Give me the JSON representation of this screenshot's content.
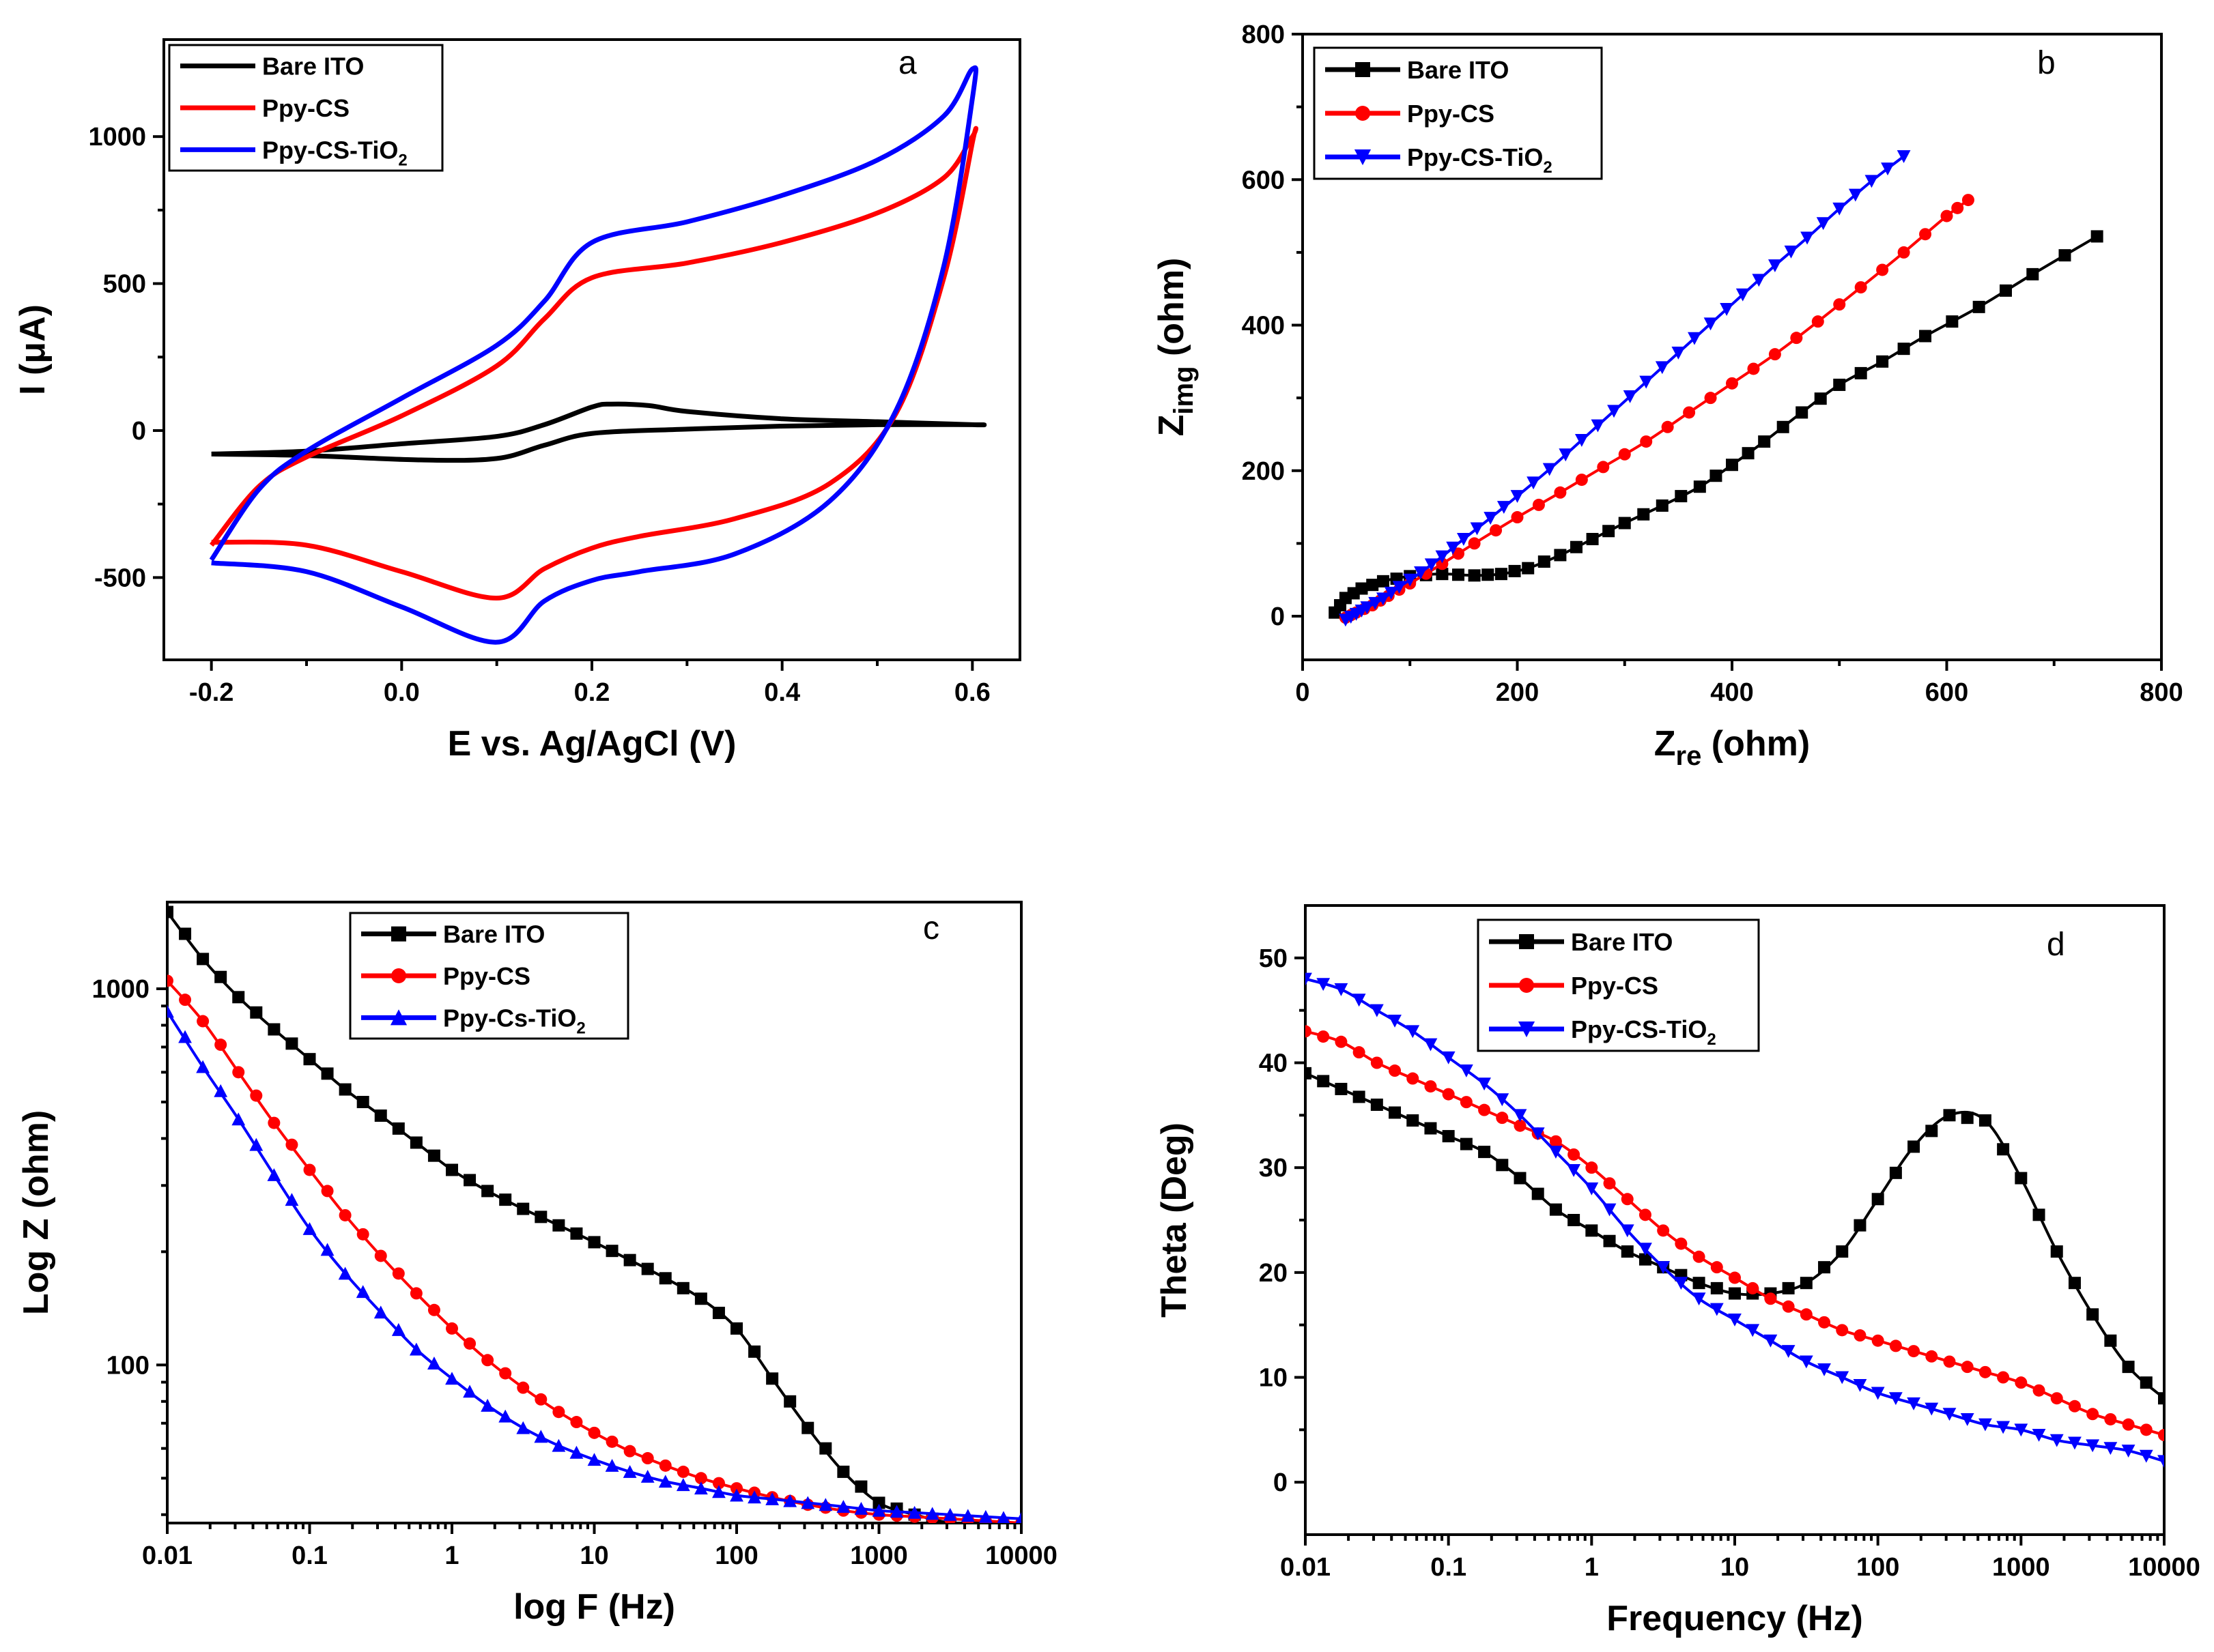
{
  "colors": {
    "bare": "#000000",
    "ppy": "#ff0000",
    "tio2": "#0000ff"
  },
  "chart_data": [
    {
      "panel": "a",
      "type": "line",
      "xlabel": "E vs. Ag/AgCl (V)",
      "ylabel": "I (μA)",
      "xlim": [
        -0.25,
        0.65
      ],
      "ylim": [
        -780,
        1330
      ],
      "xticks": [
        -0.2,
        0.0,
        0.2,
        0.4,
        0.6
      ],
      "xtick_labels": [
        "-0.2",
        "0.0",
        "0.2",
        "0.4",
        "0.6"
      ],
      "yticks": [
        -500,
        0,
        500,
        1000
      ],
      "ytick_labels": [
        "-500",
        "0",
        "500",
        "1000"
      ],
      "legend": {
        "position": "top-left",
        "entries": [
          {
            "label": "Bare ITO",
            "marker": "none"
          },
          {
            "label": "Ppy-CS",
            "marker": "none"
          },
          {
            "label": "Ppy-CS-TiO",
            "sub": "2",
            "marker": "none"
          }
        ]
      },
      "series": [
        {
          "name": "Bare ITO",
          "color": "bare",
          "x": [
            -0.2,
            -0.1,
            0.0,
            0.1,
            0.15,
            0.2,
            0.22,
            0.26,
            0.3,
            0.4,
            0.5,
            0.6,
            0.6,
            0.5,
            0.4,
            0.3,
            0.2,
            0.15,
            0.1,
            0.02,
            -0.1,
            -0.2
          ],
          "y": [
            -80,
            -70,
            -45,
            -20,
            20,
            80,
            90,
            85,
            65,
            40,
            30,
            20,
            20,
            20,
            15,
            5,
            -10,
            -50,
            -95,
            -100,
            -85,
            -80
          ]
        },
        {
          "name": "Ppy-CS",
          "color": "ppy",
          "x": [
            -0.2,
            -0.15,
            -0.1,
            0.0,
            0.1,
            0.15,
            0.2,
            0.3,
            0.4,
            0.5,
            0.57,
            0.6,
            0.6,
            0.57,
            0.52,
            0.45,
            0.35,
            0.25,
            0.2,
            0.15,
            0.1,
            0.0,
            -0.1,
            -0.2
          ],
          "y": [
            -390,
            -190,
            -90,
            50,
            220,
            380,
            520,
            570,
            640,
            740,
            860,
            1000,
            980,
            520,
            60,
            -180,
            -300,
            -360,
            -400,
            -470,
            -570,
            -480,
            -390,
            -380
          ]
        },
        {
          "name": "Ppy-CS-TiO2",
          "color": "tio2",
          "x": [
            -0.2,
            -0.15,
            -0.1,
            0.0,
            0.1,
            0.15,
            0.2,
            0.3,
            0.4,
            0.5,
            0.57,
            0.6,
            0.6,
            0.57,
            0.52,
            0.45,
            0.35,
            0.25,
            0.2,
            0.15,
            0.1,
            0.0,
            -0.1,
            -0.2
          ],
          "y": [
            -440,
            -200,
            -70,
            110,
            290,
            440,
            640,
            710,
            800,
            920,
            1070,
            1230,
            1130,
            560,
            70,
            -240,
            -420,
            -480,
            -510,
            -580,
            -720,
            -600,
            -480,
            -450
          ]
        }
      ]
    },
    {
      "panel": "b",
      "type": "scatter",
      "xlabel": "Z",
      "xlabel_sub": "re",
      "xlabel_suffix": " (ohm)",
      "ylabel": "Z",
      "ylabel_sub": "img",
      "ylabel_suffix": " (ohm)",
      "xlim": [
        0,
        800
      ],
      "ylim": [
        -60,
        800
      ],
      "xticks": [
        0,
        200,
        400,
        600,
        800
      ],
      "xtick_labels": [
        "0",
        "200",
        "400",
        "600",
        "800"
      ],
      "yticks": [
        0,
        200,
        400,
        600,
        800
      ],
      "ytick_labels": [
        "0",
        "200",
        "400",
        "600",
        "800"
      ],
      "legend": {
        "position": "top-left",
        "entries": [
          {
            "label": "Bare ITO",
            "marker": "square"
          },
          {
            "label": "Ppy-CS",
            "marker": "circle"
          },
          {
            "label": "Ppy-CS-TiO",
            "sub": "2",
            "marker": "triangle-down"
          }
        ]
      },
      "series": [
        {
          "name": "Bare ITO",
          "color": "bare",
          "marker": "square",
          "x": [
            30,
            40,
            55,
            75,
            100,
            130,
            160,
            185,
            210,
            240,
            270,
            300,
            335,
            370,
            400,
            430,
            465,
            500,
            540,
            580,
            630,
            680,
            740
          ],
          "y": [
            5,
            25,
            38,
            48,
            55,
            58,
            56,
            58,
            66,
            84,
            106,
            128,
            152,
            178,
            208,
            240,
            280,
            318,
            350,
            385,
            425,
            470,
            522
          ]
        },
        {
          "name": "Ppy-CS",
          "color": "ppy",
          "marker": "circle",
          "x": [
            40,
            50,
            65,
            80,
            100,
            130,
            160,
            200,
            240,
            280,
            320,
            360,
            400,
            440,
            480,
            520,
            560,
            600,
            620
          ],
          "y": [
            -2,
            5,
            15,
            28,
            45,
            72,
            100,
            136,
            170,
            205,
            240,
            280,
            320,
            360,
            405,
            452,
            500,
            550,
            572
          ]
        },
        {
          "name": "Ppy-CS-TiO2",
          "color": "tio2",
          "marker": "triangle-down",
          "x": [
            40,
            50,
            60,
            75,
            90,
            110,
            130,
            150,
            175,
            200,
            230,
            260,
            290,
            320,
            350,
            380,
            410,
            440,
            470,
            500,
            530,
            560
          ],
          "y": [
            -5,
            3,
            12,
            24,
            40,
            60,
            82,
            106,
            135,
            165,
            202,
            242,
            282,
            322,
            362,
            402,
            442,
            482,
            520,
            560,
            598,
            632
          ]
        }
      ]
    },
    {
      "panel": "c",
      "type": "scatter",
      "xscale": "log",
      "yscale": "log",
      "xlabel": "log F (Hz)",
      "ylabel": "Log Z (ohm)",
      "xlim": [
        0.01,
        10000
      ],
      "ylim": [
        38,
        1700
      ],
      "xticks": [
        0.01,
        0.1,
        1,
        10,
        100,
        1000,
        10000
      ],
      "xtick_labels": [
        "0.01",
        "0.1",
        "1",
        "10",
        "100",
        "1000",
        "10000"
      ],
      "yticks": [
        100,
        1000
      ],
      "ytick_labels": [
        "100",
        "1000"
      ],
      "legend": {
        "position": "top-center",
        "entries": [
          {
            "label": "Bare ITO",
            "marker": "square"
          },
          {
            "label": "Ppy-CS",
            "marker": "circle"
          },
          {
            "label": "Ppy-Cs-TiO",
            "sub": "2",
            "marker": "triangle-up"
          }
        ]
      },
      "series": [
        {
          "name": "Bare ITO",
          "color": "bare",
          "marker": "square",
          "logx": [
            -2.0,
            -1.75,
            -1.5,
            -1.25,
            -1.0,
            -0.75,
            -0.5,
            -0.25,
            0.0,
            0.25,
            0.5,
            0.75,
            1.0,
            1.25,
            1.5,
            1.75,
            2.0,
            2.25,
            2.5,
            2.75,
            3.0,
            3.25,
            3.5,
            3.75,
            4.0
          ],
          "y": [
            1600,
            1200,
            950,
            780,
            650,
            540,
            460,
            390,
            330,
            290,
            260,
            235,
            212,
            190,
            170,
            150,
            125,
            92,
            68,
            52,
            43,
            40,
            38,
            37,
            35
          ]
        },
        {
          "name": "Ppy-CS",
          "color": "ppy",
          "marker": "circle",
          "logx": [
            -2.0,
            -1.75,
            -1.5,
            -1.25,
            -1.0,
            -0.75,
            -0.5,
            -0.25,
            0.0,
            0.25,
            0.5,
            0.75,
            1.0,
            1.25,
            1.5,
            1.75,
            2.0,
            2.25,
            2.5,
            2.75,
            3.0,
            3.25,
            3.5,
            3.75,
            4.0
          ],
          "y": [
            1050,
            820,
            600,
            440,
            330,
            250,
            195,
            155,
            125,
            103,
            87,
            75,
            66,
            59,
            54,
            50,
            47,
            44.5,
            42.5,
            41,
            40,
            39.5,
            39,
            38.5,
            38
          ]
        },
        {
          "name": "Ppy-Cs-TiO2",
          "color": "tio2",
          "marker": "triangle-up",
          "logx": [
            -2.0,
            -1.75,
            -1.5,
            -1.25,
            -1.0,
            -0.75,
            -0.5,
            -0.25,
            0.0,
            0.25,
            0.5,
            0.75,
            1.0,
            1.25,
            1.5,
            1.75,
            2.0,
            2.25,
            2.5,
            2.75,
            3.0,
            3.25,
            3.5,
            3.75,
            4.0
          ],
          "y": [
            870,
            620,
            450,
            320,
            230,
            175,
            138,
            110,
            92,
            78,
            68,
            61,
            56,
            52,
            49,
            47,
            45,
            44,
            43,
            42,
            41,
            40.5,
            40,
            39.5,
            39
          ]
        }
      ]
    },
    {
      "panel": "d",
      "type": "scatter",
      "xscale": "log",
      "xlabel": "Frequency (Hz)",
      "ylabel": "Theta (Deg)",
      "xlim": [
        0.01,
        10000
      ],
      "ylim": [
        -5,
        55
      ],
      "xticks": [
        0.01,
        0.1,
        1,
        10,
        100,
        1000,
        10000
      ],
      "xtick_labels": [
        "0.01",
        "0.1",
        "1",
        "10",
        "100",
        "1000",
        "10000"
      ],
      "yticks": [
        0,
        10,
        20,
        30,
        40,
        50
      ],
      "ytick_labels": [
        "0",
        "10",
        "20",
        "30",
        "40",
        "50"
      ],
      "legend": {
        "position": "top-center",
        "entries": [
          {
            "label": "Bare ITO",
            "marker": "square"
          },
          {
            "label": "Ppy-CS",
            "marker": "circle"
          },
          {
            "label": "Ppy-CS-TiO",
            "sub": "2",
            "marker": "triangle-down"
          }
        ]
      },
      "series": [
        {
          "name": "Bare ITO",
          "color": "bare",
          "marker": "square",
          "logx": [
            -2.0,
            -1.75,
            -1.5,
            -1.25,
            -1.0,
            -0.75,
            -0.5,
            -0.25,
            0.0,
            0.25,
            0.5,
            0.75,
            1.0,
            1.25,
            1.5,
            1.75,
            2.0,
            2.25,
            2.5,
            2.75,
            3.0,
            3.25,
            3.5,
            3.75,
            4.0
          ],
          "y": [
            39,
            37.5,
            36,
            34.5,
            33,
            31.5,
            29,
            26,
            24,
            22,
            20.5,
            19,
            18,
            18,
            19,
            22,
            27,
            32,
            35,
            34.5,
            29,
            22,
            16,
            11,
            8
          ]
        },
        {
          "name": "Ppy-CS",
          "color": "ppy",
          "marker": "circle",
          "logx": [
            -2.0,
            -1.75,
            -1.5,
            -1.25,
            -1.0,
            -0.75,
            -0.5,
            -0.25,
            0.0,
            0.25,
            0.5,
            0.75,
            1.0,
            1.25,
            1.5,
            1.75,
            2.0,
            2.25,
            2.5,
            2.75,
            3.0,
            3.25,
            3.5,
            3.75,
            4.0
          ],
          "y": [
            43,
            42,
            40,
            38.5,
            37,
            35.5,
            34,
            32.5,
            30,
            27,
            24,
            21.5,
            19.5,
            17.5,
            16,
            14.5,
            13.5,
            12.5,
            11.5,
            10.5,
            9.5,
            8,
            6.5,
            5.5,
            4.5
          ]
        },
        {
          "name": "Ppy-CS-TiO2",
          "color": "tio2",
          "marker": "triangle-down",
          "logx": [
            -2.0,
            -1.75,
            -1.5,
            -1.25,
            -1.0,
            -0.75,
            -0.5,
            -0.25,
            0.0,
            0.25,
            0.5,
            0.75,
            1.0,
            1.25,
            1.5,
            1.75,
            2.0,
            2.25,
            2.5,
            2.75,
            3.0,
            3.25,
            3.5,
            3.75,
            4.0
          ],
          "y": [
            48,
            47,
            45,
            43,
            40.5,
            38,
            35,
            31.5,
            28,
            24,
            20.5,
            17.5,
            15.5,
            13.5,
            11.5,
            10,
            8.5,
            7.5,
            6.5,
            5.5,
            5,
            4,
            3.5,
            3,
            2
          ]
        }
      ]
    }
  ]
}
